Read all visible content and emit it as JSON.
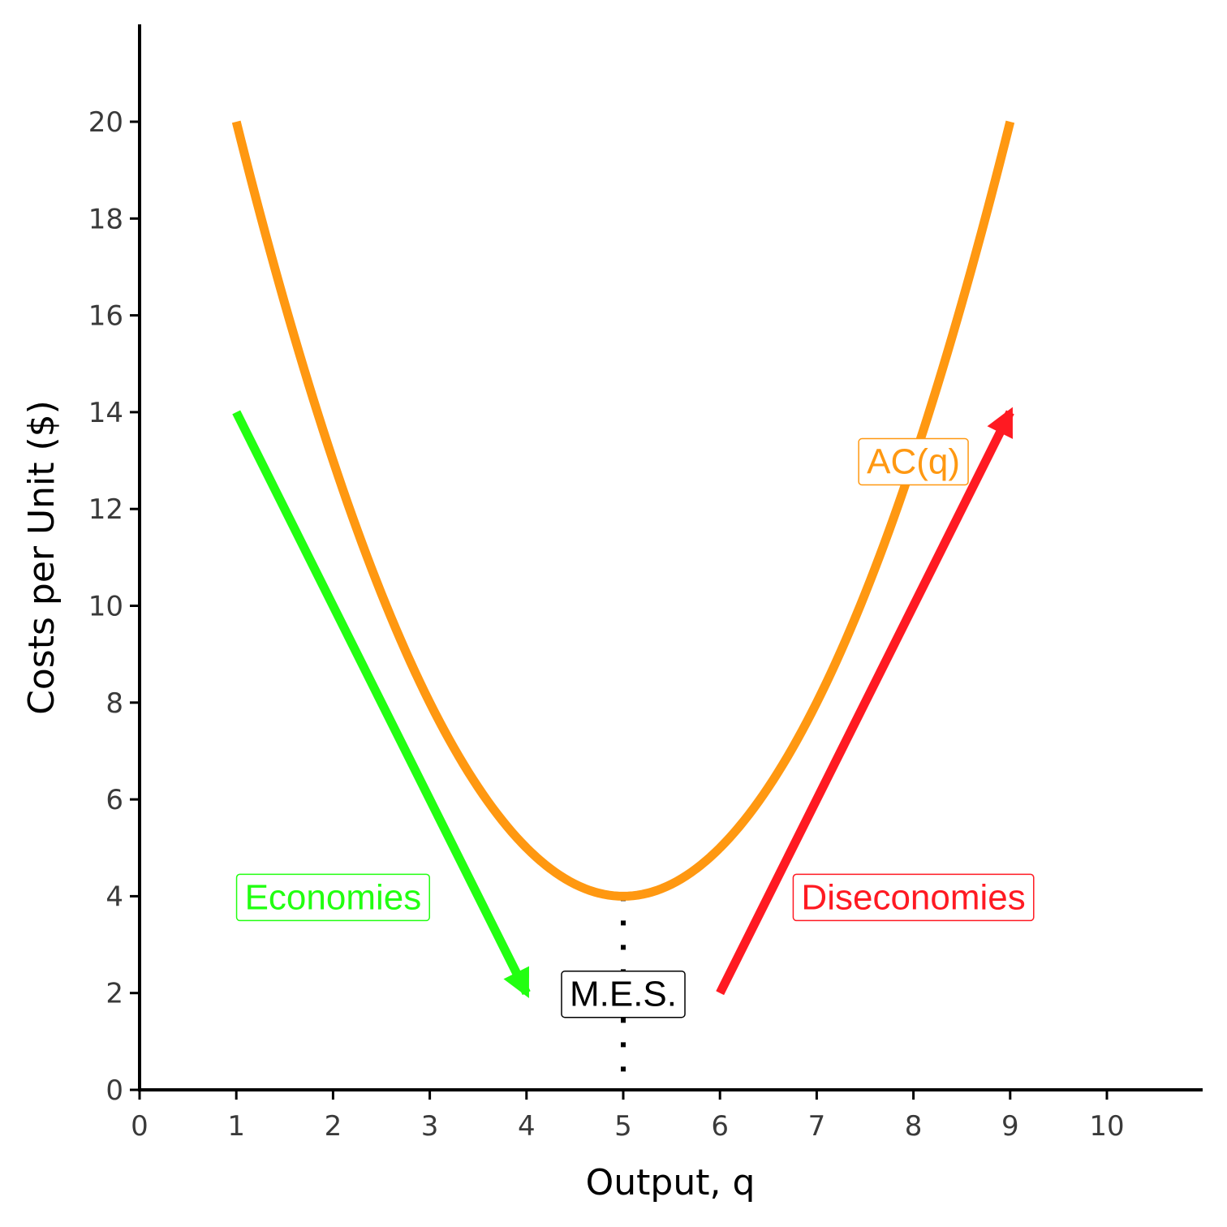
{
  "chart_data": {
    "type": "line",
    "title": "",
    "xlabel": "Output, q",
    "ylabel": "Costs per Unit ($)",
    "xlim": [
      0,
      11
    ],
    "ylim": [
      0,
      22
    ],
    "x_ticks": [
      0,
      1,
      2,
      3,
      4,
      5,
      6,
      7,
      8,
      9,
      10
    ],
    "y_ticks": [
      0,
      2,
      4,
      6,
      8,
      10,
      12,
      14,
      16,
      18,
      20
    ],
    "grid": false,
    "series": [
      {
        "name": "AC(q)",
        "color": "#FF9811",
        "function": "AC(q) = (q - 5)^2 + 4",
        "x": [
          1,
          1.5,
          2,
          2.5,
          3,
          3.5,
          4,
          4.5,
          5,
          5.5,
          6,
          6.5,
          7,
          7.5,
          8,
          8.5,
          9
        ],
        "y": [
          20,
          16.25,
          13,
          10.25,
          8,
          6.25,
          5,
          4.25,
          4,
          4.25,
          5,
          6.25,
          8,
          10.25,
          13,
          16.25,
          20
        ]
      }
    ],
    "arrows": [
      {
        "name": "economies-arrow",
        "color": "#22FF11",
        "from": [
          1,
          14
        ],
        "to": [
          4,
          2
        ]
      },
      {
        "name": "diseconomies-arrow",
        "color": "#FF1A22",
        "from": [
          6,
          2
        ],
        "to": [
          9,
          14
        ]
      }
    ],
    "vlines": [
      {
        "name": "mes-line",
        "x": 5,
        "y_from": 0,
        "y_to": 4,
        "style": "dotted",
        "color": "#000000"
      }
    ],
    "annotations": [
      {
        "name": "ac-label",
        "text": "AC(q)",
        "x": 8,
        "y": 13,
        "color": "#FF9811"
      },
      {
        "name": "economies-label",
        "text": "Economies",
        "x": 2,
        "y": 4,
        "color": "#22FF11"
      },
      {
        "name": "diseconomies-label",
        "text": "Diseconomies",
        "x": 8,
        "y": 4,
        "color": "#FF1A22"
      },
      {
        "name": "mes-label",
        "text": "M.E.S.",
        "x": 5,
        "y": 2,
        "color": "#000000"
      }
    ]
  }
}
